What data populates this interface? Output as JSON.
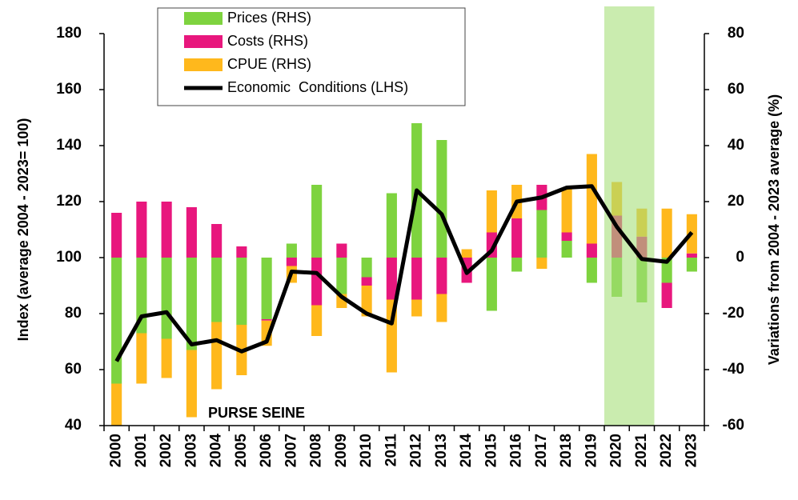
{
  "chart_data": {
    "type": "combo",
    "annotation": "PURSE SEINE",
    "ylabel": "Index (average 2004 - 2023= 100)",
    "y2label": "Variations from 2004 - 2023 average (%)",
    "categories": [
      "2000",
      "2001",
      "2002",
      "2003",
      "2004",
      "2005",
      "2006",
      "2007",
      "2008",
      "2009",
      "2010",
      "2011",
      "2012",
      "2013",
      "2014",
      "2015",
      "2016",
      "2017",
      "2018",
      "2019",
      "2020",
      "2021",
      "2022",
      "2023"
    ],
    "series": [
      {
        "name": "Prices (RHS)",
        "type": "bar",
        "axis": "y2",
        "color": "#7ed33f",
        "values": [
          -45,
          -27,
          -29,
          -33,
          -23,
          -24,
          -22,
          5,
          26,
          -13,
          -7,
          23,
          48,
          42,
          0,
          -19,
          -5,
          17,
          6,
          -9,
          -14,
          -16,
          -9,
          -5
        ]
      },
      {
        "name": "Costs (RHS)",
        "type": "bar",
        "axis": "y2",
        "color": "#e8177d",
        "values": [
          16,
          20,
          20,
          18,
          12,
          4,
          -0.5,
          -3,
          -17,
          5,
          -3,
          -15,
          -15,
          -13,
          -9,
          9,
          14,
          9,
          3,
          5,
          15,
          7.5,
          -9,
          1.5
        ]
      },
      {
        "name": "CPUE (RHS)",
        "type": "bar",
        "axis": "y2",
        "color": "#ffb81c",
        "values": [
          -15,
          -18,
          -14,
          -24,
          -24,
          -18,
          -9,
          -6,
          -11,
          -5,
          -11,
          -26,
          -6,
          -10,
          3,
          15,
          12,
          -4,
          16,
          32,
          12,
          10,
          17.5,
          14
        ]
      },
      {
        "name": "Economic  Conditions (LHS)",
        "type": "line",
        "axis": "y",
        "color": "#000000",
        "values": [
          63,
          79,
          80.5,
          69,
          70.5,
          66.5,
          70,
          95,
          94.5,
          86,
          80,
          76.5,
          124,
          115.5,
          94.5,
          102.5,
          120,
          121.5,
          125,
          125.5,
          111,
          99.5,
          98.5,
          109
        ]
      }
    ],
    "ylim": [
      40,
      180
    ],
    "yticks": [
      40,
      60,
      80,
      100,
      120,
      140,
      160,
      180
    ],
    "y2lim": [
      -60,
      80
    ],
    "y2ticks": [
      -60,
      -40,
      -20,
      0,
      20,
      40,
      60,
      80
    ],
    "shade": {
      "from": "2020",
      "to": "2021",
      "color": "#a6e07a"
    },
    "legend": "top-left",
    "grid": false
  }
}
